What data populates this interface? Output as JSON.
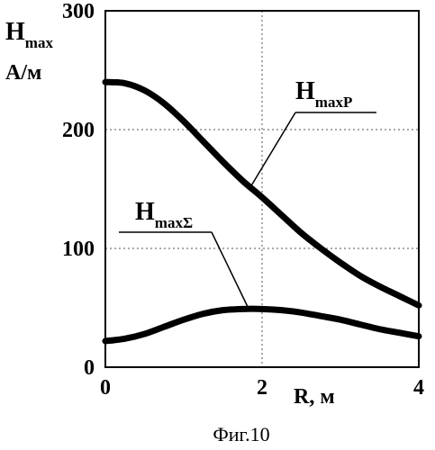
{
  "chart_data": {
    "type": "line",
    "title": "",
    "xlabel": "R, м",
    "ylabel": {
      "main": "H",
      "sub": "max",
      "unit": "А/м"
    },
    "xlim": [
      0,
      4
    ],
    "ylim": [
      0,
      300
    ],
    "x_ticks": [
      "0",
      "2",
      "4"
    ],
    "y_ticks": [
      "0",
      "100",
      "200",
      "300"
    ],
    "grid": "dotted at x=2, y=100, y=200",
    "series": [
      {
        "name": "HmaxP",
        "label_main": "H",
        "label_sub": "maxP",
        "x": [
          0,
          0.25,
          0.5,
          0.75,
          1.0,
          1.25,
          1.5,
          1.75,
          2.0,
          2.25,
          2.5,
          2.75,
          3.0,
          3.25,
          3.5,
          3.75,
          4.0
        ],
        "y": [
          240,
          239,
          233,
          222,
          207,
          190,
          173,
          157,
          143,
          128,
          113,
          100,
          88,
          77,
          68,
          60,
          52
        ]
      },
      {
        "name": "HmaxΣ",
        "label_main": "H",
        "label_sub": "maxΣ",
        "x": [
          0,
          0.25,
          0.5,
          0.75,
          1.0,
          1.25,
          1.5,
          1.75,
          2.0,
          2.25,
          2.5,
          2.75,
          3.0,
          3.25,
          3.5,
          3.75,
          4.0
        ],
        "y": [
          22,
          24,
          28,
          34,
          40,
          45,
          48,
          49,
          49,
          48,
          46,
          43,
          40,
          36,
          32,
          29,
          26
        ]
      }
    ]
  },
  "caption": "Фиг.10",
  "colors": {
    "line": "#000000",
    "grid": "#555555",
    "background": "#ffffff"
  }
}
